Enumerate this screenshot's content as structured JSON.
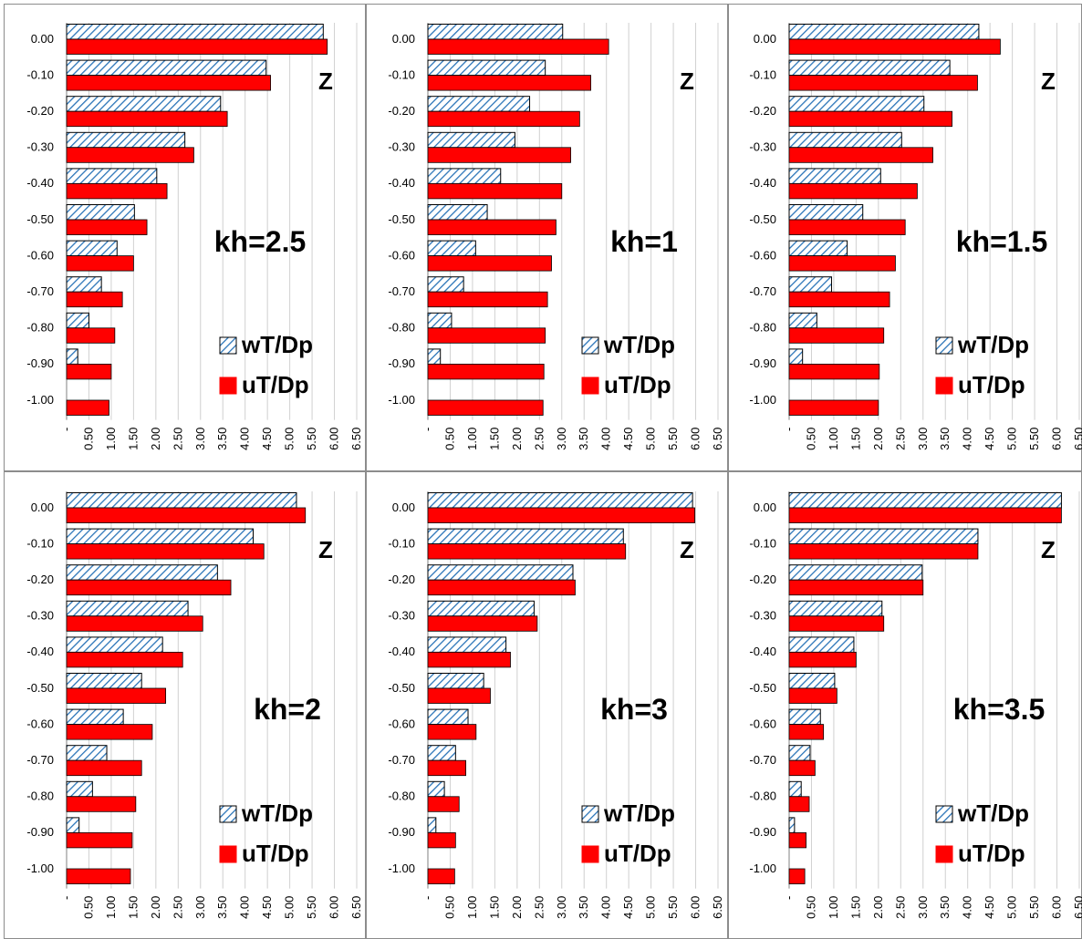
{
  "chart_data": [
    {
      "type": "bar",
      "orientation": "horizontal",
      "annotation": "kh=2.5",
      "z_label": "Z",
      "categories": [
        "0.00",
        "-0.10",
        "-0.20",
        "-0.30",
        "-0.40",
        "-0.50",
        "-0.60",
        "-0.70",
        "-0.80",
        "-0.90",
        "-1.00"
      ],
      "series": [
        {
          "name": "wT/Dp",
          "values": [
            5.75,
            4.47,
            3.45,
            2.65,
            2.02,
            1.52,
            1.13,
            0.78,
            0.5,
            0.25,
            0.0
          ]
        },
        {
          "name": "uT/Dp",
          "values": [
            5.84,
            4.57,
            3.6,
            2.85,
            2.25,
            1.8,
            1.5,
            1.25,
            1.08,
            1.0,
            0.95
          ]
        }
      ],
      "x_ticks": [
        "-",
        "0.50",
        "1.00",
        "1.50",
        "2.00",
        "2.50",
        "3.00",
        "3.50",
        "4.00",
        "4.50",
        "5.00",
        "5.50",
        "6.00",
        "6.50"
      ],
      "xlim": [
        0,
        6.5
      ],
      "legend": "bottom-right",
      "grid": true
    },
    {
      "type": "bar",
      "orientation": "horizontal",
      "annotation": "kh=1",
      "z_label": "Z",
      "categories": [
        "0.00",
        "-0.10",
        "-0.20",
        "-0.30",
        "-0.40",
        "-0.50",
        "-0.60",
        "-0.70",
        "-0.80",
        "-0.90",
        "-1.00"
      ],
      "series": [
        {
          "name": "wT/Dp",
          "values": [
            3.02,
            2.63,
            2.28,
            1.95,
            1.63,
            1.33,
            1.07,
            0.8,
            0.53,
            0.28,
            0.0
          ]
        },
        {
          "name": "uT/Dp",
          "values": [
            4.05,
            3.65,
            3.4,
            3.2,
            3.0,
            2.87,
            2.77,
            2.68,
            2.63,
            2.6,
            2.58
          ]
        }
      ],
      "x_ticks": [
        "-",
        "0.50",
        "1.00",
        "1.50",
        "2.00",
        "2.50",
        "3.00",
        "3.50",
        "4.00",
        "4.50",
        "5.00",
        "5.50",
        "6.00",
        "6.50"
      ],
      "xlim": [
        0,
        6.5
      ],
      "legend": "bottom-right",
      "grid": true
    },
    {
      "type": "bar",
      "orientation": "horizontal",
      "annotation": "kh=1.5",
      "z_label": "Z",
      "categories": [
        "0.00",
        "-0.10",
        "-0.20",
        "-0.30",
        "-0.40",
        "-0.50",
        "-0.60",
        "-0.70",
        "-0.80",
        "-0.90",
        "-1.00"
      ],
      "series": [
        {
          "name": "wT/Dp",
          "values": [
            4.25,
            3.6,
            3.02,
            2.52,
            2.05,
            1.65,
            1.3,
            0.95,
            0.62,
            0.3,
            0.0
          ]
        },
        {
          "name": "uT/Dp",
          "values": [
            4.73,
            4.22,
            3.65,
            3.22,
            2.87,
            2.6,
            2.38,
            2.25,
            2.12,
            2.02,
            2.0
          ]
        }
      ],
      "x_ticks": [
        "-",
        "0.50",
        "1.00",
        "1.50",
        "2.00",
        "2.50",
        "3.00",
        "3.50",
        "4.00",
        "4.50",
        "5.00",
        "5.50",
        "6.00",
        "6.50"
      ],
      "xlim": [
        0,
        6.5
      ],
      "legend": "bottom-right",
      "grid": true
    },
    {
      "type": "bar",
      "orientation": "horizontal",
      "annotation": "kh=2",
      "z_label": "Z",
      "categories": [
        "0.00",
        "-0.10",
        "-0.20",
        "-0.30",
        "-0.40",
        "-0.50",
        "-0.60",
        "-0.70",
        "-0.80",
        "-0.90",
        "-1.00"
      ],
      "series": [
        {
          "name": "wT/Dp",
          "values": [
            5.15,
            4.18,
            3.38,
            2.72,
            2.15,
            1.68,
            1.27,
            0.9,
            0.58,
            0.28,
            0.0
          ]
        },
        {
          "name": "uT/Dp",
          "values": [
            5.35,
            4.42,
            3.68,
            3.05,
            2.6,
            2.22,
            1.92,
            1.68,
            1.55,
            1.47,
            1.43
          ]
        }
      ],
      "x_ticks": [
        "-",
        "0.50",
        "1.00",
        "1.50",
        "2.00",
        "2.50",
        "3.00",
        "3.50",
        "4.00",
        "4.50",
        "5.00",
        "5.50",
        "6.00",
        "6.50"
      ],
      "xlim": [
        0,
        6.5
      ],
      "legend": "bottom-right",
      "grid": true
    },
    {
      "type": "bar",
      "orientation": "horizontal",
      "annotation": "kh=3",
      "z_label": "Z",
      "categories": [
        "0.00",
        "-0.10",
        "-0.20",
        "-0.30",
        "-0.40",
        "-0.50",
        "-0.60",
        "-0.70",
        "-0.80",
        "-0.90",
        "-1.00"
      ],
      "series": [
        {
          "name": "wT/Dp",
          "values": [
            5.93,
            4.38,
            3.25,
            2.38,
            1.75,
            1.25,
            0.9,
            0.62,
            0.37,
            0.18,
            0.0
          ]
        },
        {
          "name": "uT/Dp",
          "values": [
            5.98,
            4.43,
            3.3,
            2.45,
            1.85,
            1.4,
            1.08,
            0.85,
            0.7,
            0.62,
            0.6
          ]
        }
      ],
      "x_ticks": [
        "-",
        "0.50",
        "1.00",
        "1.50",
        "2.00",
        "2.50",
        "3.00",
        "3.50",
        "4.00",
        "4.50",
        "5.00",
        "5.50",
        "6.00",
        "6.50"
      ],
      "xlim": [
        0,
        6.5
      ],
      "legend": "bottom-right",
      "grid": true
    },
    {
      "type": "bar",
      "orientation": "horizontal",
      "annotation": "kh=3.5",
      "z_label": "Z",
      "categories": [
        "0.00",
        "-0.10",
        "-0.20",
        "-0.30",
        "-0.40",
        "-0.50",
        "-0.60",
        "-0.70",
        "-0.80",
        "-0.90",
        "-1.00"
      ],
      "series": [
        {
          "name": "wT/Dp",
          "values": [
            6.1,
            4.23,
            2.98,
            2.08,
            1.45,
            1.02,
            0.7,
            0.47,
            0.27,
            0.12,
            0.0
          ]
        },
        {
          "name": "uT/Dp",
          "values": [
            6.1,
            4.23,
            3.0,
            2.12,
            1.5,
            1.07,
            0.77,
            0.58,
            0.45,
            0.38,
            0.35
          ]
        }
      ],
      "x_ticks": [
        "-",
        "0.50",
        "1.00",
        "1.50",
        "2.00",
        "2.50",
        "3.00",
        "3.50",
        "4.00",
        "4.50",
        "5.00",
        "5.50",
        "6.00",
        "6.50"
      ],
      "xlim": [
        0,
        6.5
      ],
      "legend": "bottom-right",
      "grid": true
    }
  ],
  "colors": {
    "w_hatch": "#2a74b8",
    "w_fill": "#ffffff",
    "u_fill": "#ff0000",
    "bar_stroke": "#000000",
    "grid": "#d0d0d0",
    "frame": "#8c8c8c"
  }
}
